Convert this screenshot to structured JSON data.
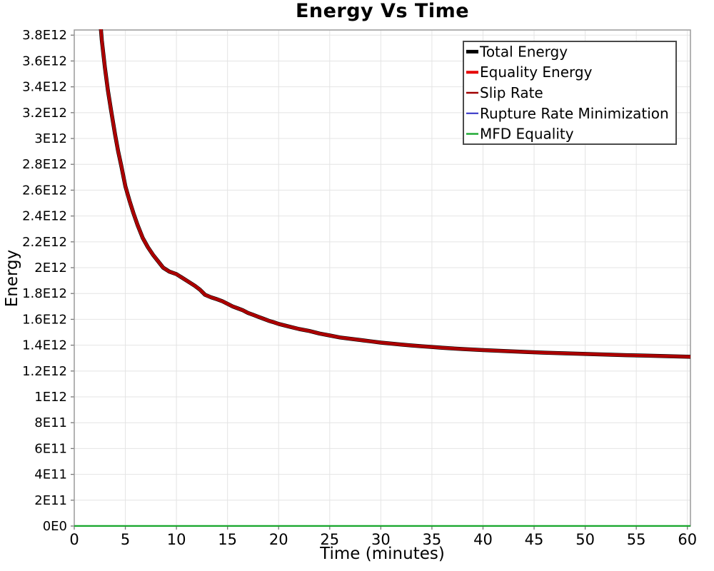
{
  "page": {
    "background": "#ffffff"
  },
  "chart_data": {
    "type": "line",
    "title": "Energy Vs Time",
    "xlabel": "Time (minutes)",
    "ylabel": "Energy",
    "xlim": [
      0,
      60.3
    ],
    "ylim": [
      0,
      3840000000000.0
    ],
    "grid": true,
    "legend_position": "top-right",
    "x_ticks": [
      0,
      5,
      10,
      15,
      20,
      25,
      30,
      35,
      40,
      45,
      50,
      55,
      60
    ],
    "y_ticks": [
      {
        "value": 0,
        "label": "0E0"
      },
      {
        "value": 200000000000.0,
        "label": "2E11"
      },
      {
        "value": 400000000000.0,
        "label": "4E11"
      },
      {
        "value": 600000000000.0,
        "label": "6E11"
      },
      {
        "value": 800000000000.0,
        "label": "8E11"
      },
      {
        "value": 1000000000000.0,
        "label": "1E12"
      },
      {
        "value": 1200000000000.0,
        "label": "1.2E12"
      },
      {
        "value": 1400000000000.0,
        "label": "1.4E12"
      },
      {
        "value": 1600000000000.0,
        "label": "1.6E12"
      },
      {
        "value": 1800000000000.0,
        "label": "1.8E12"
      },
      {
        "value": 2000000000000.0,
        "label": "2E12"
      },
      {
        "value": 2200000000000.0,
        "label": "2.2E12"
      },
      {
        "value": 2400000000000.0,
        "label": "2.4E12"
      },
      {
        "value": 2600000000000.0,
        "label": "2.6E12"
      },
      {
        "value": 2800000000000.0,
        "label": "2.8E12"
      },
      {
        "value": 3000000000000.0,
        "label": "3E12"
      },
      {
        "value": 3200000000000.0,
        "label": "3.2E12"
      },
      {
        "value": 3400000000000.0,
        "label": "3.4E12"
      },
      {
        "value": 3600000000000.0,
        "label": "3.6E12"
      },
      {
        "value": 3800000000000.0,
        "label": "3.8E12"
      }
    ],
    "colors": {
      "grid": "#e4e4e4",
      "plot_border": "#9a9a9a",
      "tick": "#777777",
      "text": "#000000"
    },
    "legend": {
      "background": "#ffffff",
      "border_color": "#4a4a4a"
    },
    "curves": {
      "energy": [
        [
          2.5,
          3950000000000.0
        ],
        [
          2.7,
          3760000000000.0
        ],
        [
          3,
          3550000000000.0
        ],
        [
          3.3,
          3370000000000.0
        ],
        [
          3.6,
          3220000000000.0
        ],
        [
          4,
          3030000000000.0
        ],
        [
          4.3,
          2900000000000.0
        ],
        [
          4.6,
          2790000000000.0
        ],
        [
          5,
          2630000000000.0
        ],
        [
          5.4,
          2520000000000.0
        ],
        [
          5.8,
          2420000000000.0
        ],
        [
          6.2,
          2330000000000.0
        ],
        [
          6.7,
          2230000000000.0
        ],
        [
          7.2,
          2160000000000.0
        ],
        [
          7.7,
          2100000000000.0
        ],
        [
          8.2,
          2050000000000.0
        ],
        [
          8.7,
          2000000000000.0
        ],
        [
          9.3,
          1970000000000.0
        ],
        [
          10,
          1950000000000.0
        ],
        [
          10.6,
          1920000000000.0
        ],
        [
          11.2,
          1890000000000.0
        ],
        [
          11.8,
          1860000000000.0
        ],
        [
          12.3,
          1830000000000.0
        ],
        [
          12.8,
          1790000000000.0
        ],
        [
          13.4,
          1770000000000.0
        ],
        [
          14,
          1755000000000.0
        ],
        [
          14.5,
          1740000000000.0
        ],
        [
          15,
          1720000000000.0
        ],
        [
          15.5,
          1700000000000.0
        ],
        [
          16,
          1685000000000.0
        ],
        [
          16.5,
          1670000000000.0
        ],
        [
          17,
          1650000000000.0
        ],
        [
          17.5,
          1635000000000.0
        ],
        [
          18,
          1620000000000.0
        ],
        [
          18.5,
          1605000000000.0
        ],
        [
          19,
          1590000000000.0
        ],
        [
          19.5,
          1578000000000.0
        ],
        [
          20,
          1565000000000.0
        ],
        [
          21,
          1545000000000.0
        ],
        [
          22,
          1525000000000.0
        ],
        [
          23,
          1510000000000.0
        ],
        [
          24,
          1490000000000.0
        ],
        [
          25,
          1475000000000.0
        ],
        [
          26,
          1460000000000.0
        ],
        [
          27,
          1450000000000.0
        ],
        [
          28,
          1440000000000.0
        ],
        [
          29,
          1430000000000.0
        ],
        [
          30,
          1420000000000.0
        ],
        [
          31,
          1412000000000.0
        ],
        [
          32,
          1405000000000.0
        ],
        [
          33,
          1398000000000.0
        ],
        [
          34,
          1392000000000.0
        ],
        [
          35,
          1386000000000.0
        ],
        [
          36,
          1380000000000.0
        ],
        [
          37,
          1375000000000.0
        ],
        [
          38,
          1370000000000.0
        ],
        [
          39,
          1366000000000.0
        ],
        [
          40,
          1362000000000.0
        ],
        [
          42,
          1355000000000.0
        ],
        [
          44,
          1348000000000.0
        ],
        [
          46,
          1342000000000.0
        ],
        [
          48,
          1337000000000.0
        ],
        [
          50,
          1332000000000.0
        ],
        [
          52,
          1327000000000.0
        ],
        [
          54,
          1323000000000.0
        ],
        [
          56,
          1319000000000.0
        ],
        [
          58,
          1315000000000.0
        ],
        [
          60.3,
          1310000000000.0
        ]
      ],
      "baseline_zero": [
        [
          0,
          0
        ],
        [
          60.3,
          0
        ]
      ]
    },
    "series": [
      {
        "name": "Total Energy",
        "color": "#000000",
        "line_width": 5.5,
        "points": "energy"
      },
      {
        "name": "Equality Energy",
        "color": "#e60000",
        "line_width": 4,
        "points": "energy"
      },
      {
        "name": "Slip Rate",
        "color": "#a00000",
        "line_width": 2.4,
        "points": "energy"
      },
      {
        "name": "Rupture Rate Minimization",
        "color": "#2b2bc4",
        "line_width": 2,
        "points": "baseline_zero"
      },
      {
        "name": "MFD Equality",
        "color": "#17a62c",
        "line_width": 2.4,
        "points": "baseline_zero"
      }
    ]
  }
}
